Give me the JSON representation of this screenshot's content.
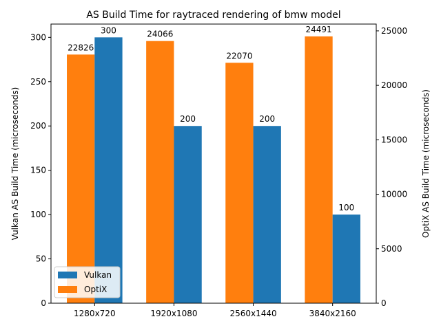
{
  "chart_data": {
    "type": "bar",
    "title": "AS Build Time for raytraced rendering of bmw model",
    "categories": [
      "1280x720",
      "1920x1080",
      "2560x1440",
      "3840x2160"
    ],
    "ylabel_left": "Vulkan AS Build Time (microseconds)",
    "ylabel_right": "OptiX AS Build Time (microseconds)",
    "ylim_left": [
      0,
      315
    ],
    "ylim_right": [
      0,
      25625
    ],
    "yticks_left": [
      0,
      50,
      100,
      150,
      200,
      250,
      300
    ],
    "yticks_right": [
      0,
      5000,
      10000,
      15000,
      20000,
      25000
    ],
    "series": [
      {
        "name": "Vulkan",
        "axis": "left",
        "color": "#1f77b4",
        "values": [
          300,
          200,
          200,
          100
        ]
      },
      {
        "name": "OptiX",
        "axis": "right",
        "color": "#ff7f0e",
        "values": [
          22826,
          24066,
          22070,
          24491
        ]
      }
    ],
    "legend_position": "lower-left",
    "grid": false
  }
}
